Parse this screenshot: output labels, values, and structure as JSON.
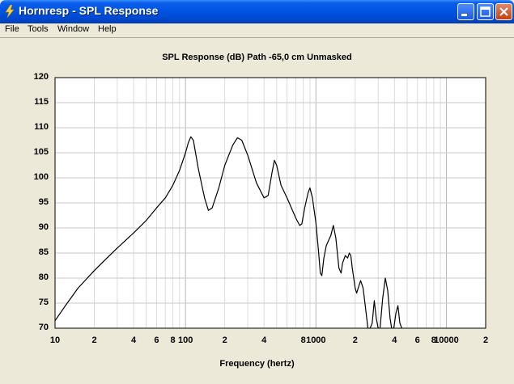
{
  "window": {
    "title": "Hornresp - SPL Response",
    "controls": [
      "minimize-icon",
      "maximize-icon",
      "close-icon"
    ]
  },
  "menu": [
    "File",
    "Tools",
    "Window",
    "Help"
  ],
  "chart_data": {
    "type": "line",
    "title": "SPL Response (dB)   Path -65,0 cm   Unmasked",
    "xlabel": "Frequency (hertz)",
    "ylabel": "",
    "x_scale": "log",
    "xlim": [
      10,
      20000
    ],
    "ylim": [
      70,
      120
    ],
    "grid": true,
    "y_ticks": [
      "120",
      "115",
      "110",
      "105",
      "100",
      "95",
      "90",
      "85",
      "80",
      "75",
      "70"
    ],
    "x_ticks": [
      {
        "value": 10,
        "label": "10"
      },
      {
        "value": 20,
        "label": "2"
      },
      {
        "value": 40,
        "label": "4"
      },
      {
        "value": 60,
        "label": "6"
      },
      {
        "value": 80,
        "label": "8"
      },
      {
        "value": 100,
        "label": "100"
      },
      {
        "value": 200,
        "label": "2"
      },
      {
        "value": 400,
        "label": "4"
      },
      {
        "value": 800,
        "label": "8"
      },
      {
        "value": 1000,
        "label": "1000"
      },
      {
        "value": 2000,
        "label": "2"
      },
      {
        "value": 4000,
        "label": "4"
      },
      {
        "value": 6000,
        "label": "6"
      },
      {
        "value": 8000,
        "label": "8"
      },
      {
        "value": 10000,
        "label": "10000"
      },
      {
        "value": 20000,
        "label": "2"
      }
    ],
    "series": [
      {
        "color": "#000000",
        "points": [
          [
            10,
            71.5
          ],
          [
            12,
            74.5
          ],
          [
            15,
            78
          ],
          [
            20,
            81.5
          ],
          [
            25,
            84
          ],
          [
            30,
            86
          ],
          [
            40,
            89
          ],
          [
            50,
            91.5
          ],
          [
            60,
            94
          ],
          [
            70,
            96
          ],
          [
            80,
            98.5
          ],
          [
            90,
            101.5
          ],
          [
            100,
            105
          ],
          [
            105,
            107
          ],
          [
            110,
            108.2
          ],
          [
            115,
            107.5
          ],
          [
            125,
            102
          ],
          [
            140,
            96
          ],
          [
            150,
            93.5
          ],
          [
            160,
            94
          ],
          [
            180,
            98
          ],
          [
            200,
            102.5
          ],
          [
            230,
            106.5
          ],
          [
            250,
            108
          ],
          [
            270,
            107.5
          ],
          [
            300,
            104.5
          ],
          [
            350,
            99
          ],
          [
            400,
            96
          ],
          [
            430,
            96.5
          ],
          [
            460,
            101
          ],
          [
            480,
            103.5
          ],
          [
            500,
            102.5
          ],
          [
            540,
            98.5
          ],
          [
            600,
            96
          ],
          [
            700,
            92
          ],
          [
            750,
            90.5
          ],
          [
            780,
            90.8
          ],
          [
            820,
            94
          ],
          [
            870,
            97
          ],
          [
            900,
            98
          ],
          [
            940,
            96
          ],
          [
            1000,
            91
          ],
          [
            1050,
            85
          ],
          [
            1080,
            81
          ],
          [
            1110,
            80.5
          ],
          [
            1150,
            84
          ],
          [
            1200,
            86.5
          ],
          [
            1300,
            88.5
          ],
          [
            1360,
            90.5
          ],
          [
            1420,
            88
          ],
          [
            1500,
            82
          ],
          [
            1560,
            81
          ],
          [
            1600,
            83
          ],
          [
            1680,
            84.5
          ],
          [
            1750,
            84
          ],
          [
            1800,
            85
          ],
          [
            1850,
            84.5
          ],
          [
            1900,
            82
          ],
          [
            2000,
            78
          ],
          [
            2050,
            77
          ],
          [
            2200,
            79.5
          ],
          [
            2300,
            78
          ],
          [
            2400,
            74
          ],
          [
            2500,
            70
          ],
          [
            2600,
            70
          ],
          [
            2700,
            71
          ],
          [
            2800,
            75.5
          ],
          [
            2900,
            72
          ],
          [
            3000,
            70
          ],
          [
            3100,
            70
          ],
          [
            3250,
            76
          ],
          [
            3400,
            80
          ],
          [
            3550,
            77.5
          ],
          [
            3700,
            72
          ],
          [
            3800,
            70
          ],
          [
            3950,
            70
          ],
          [
            4100,
            73
          ],
          [
            4250,
            74.5
          ],
          [
            4400,
            71
          ],
          [
            4550,
            70
          ]
        ]
      }
    ]
  }
}
